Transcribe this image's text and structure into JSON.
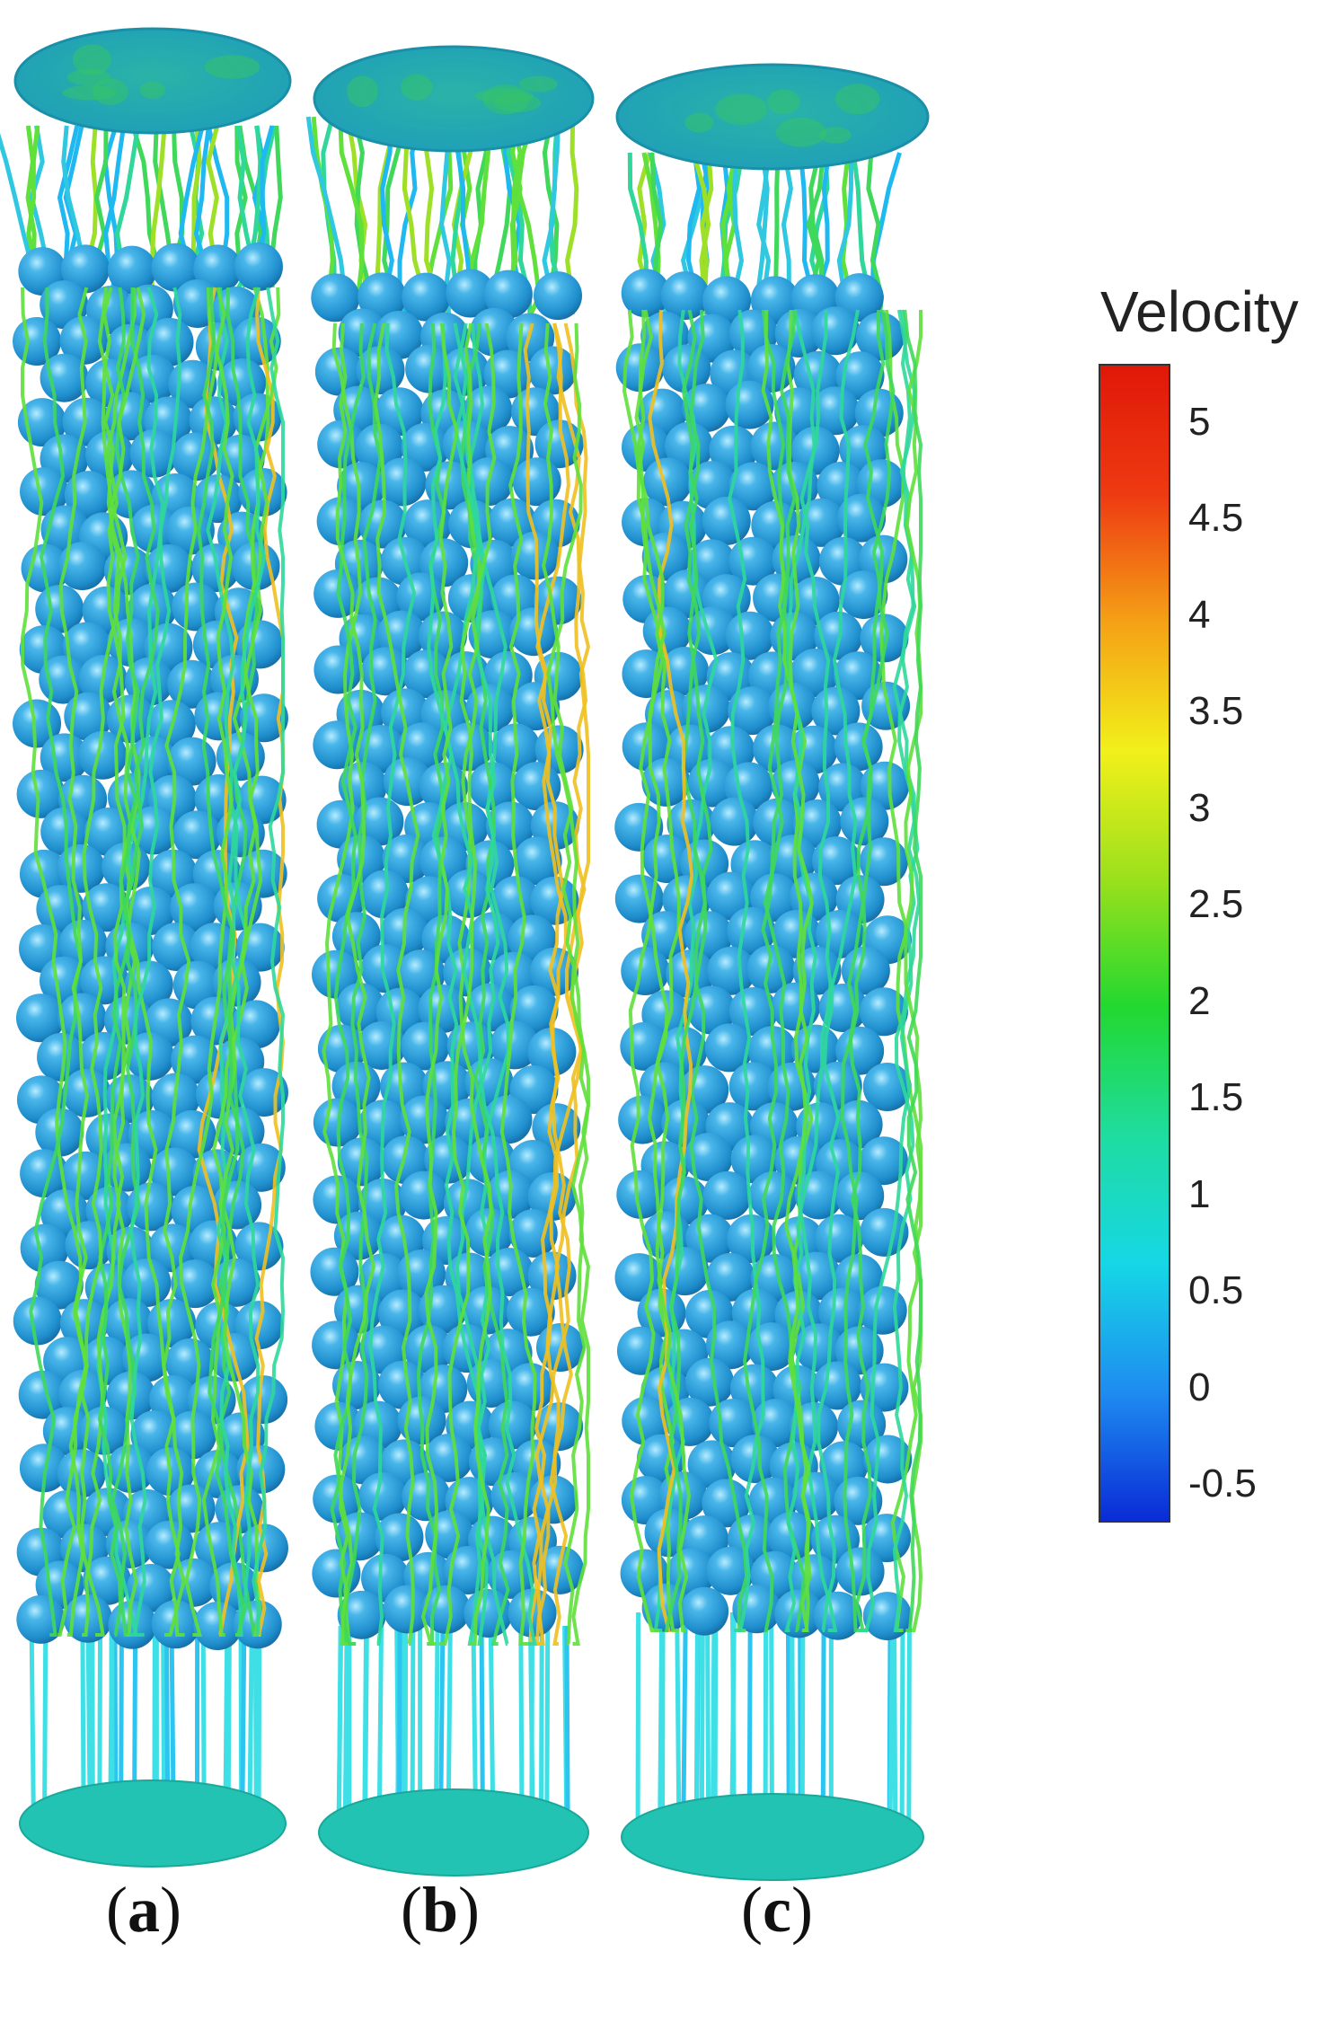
{
  "panels": [
    {
      "label_open": "(",
      "label_letter": "a",
      "label_close": ")"
    },
    {
      "label_open": "(",
      "label_letter": "b",
      "label_close": ")"
    },
    {
      "label_open": "(",
      "label_letter": "c",
      "label_close": ")"
    }
  ],
  "legend": {
    "title": "Velocity",
    "ticks": [
      "5",
      "4.5",
      "4",
      "3.5",
      "3",
      "2.5",
      "2",
      "1.5",
      "1",
      "0.5",
      "0",
      "-0.5"
    ],
    "range": [
      -0.7,
      5.3
    ],
    "colors": [
      "#0a2bd6",
      "#1e8cf0",
      "#16d7e6",
      "#1fdca0",
      "#22d830",
      "#9be01c",
      "#f2f01a",
      "#f4a116",
      "#ee3a12",
      "#e01808"
    ]
  },
  "colors": {
    "sphere": "#2b9fd8",
    "sphere_highlight": "#8fd8ff",
    "disc_top": "#1eb8b8",
    "disc_bottom": "#1ec6b4",
    "streamline_inlet": "#39e0e8",
    "streamline_main": "#3fd85a"
  }
}
